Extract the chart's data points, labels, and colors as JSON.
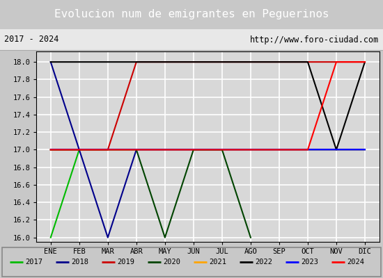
{
  "title": "Evolucion num de emigrantes en Peguerinos",
  "subtitle_left": "2017 - 2024",
  "subtitle_right": "http://www.foro-ciudad.com",
  "ylim": [
    15.95,
    18.12
  ],
  "yticks": [
    16.0,
    16.2,
    16.4,
    16.6,
    16.8,
    17.0,
    17.2,
    17.4,
    17.6,
    17.8,
    18.0
  ],
  "xtick_labels": [
    "ENE",
    "FEB",
    "MAR",
    "ABR",
    "MAY",
    "JUN",
    "JUL",
    "AGO",
    "SEP",
    "OCT",
    "NOV",
    "DIC"
  ],
  "plot_bg_color": "#d8d8d8",
  "title_bg_color": "#4472c4",
  "title_text_color": "#ffffff",
  "grid_color": "#ffffff",
  "series": [
    {
      "year": "2017",
      "color": "#00bb00",
      "x": [
        1,
        2
      ],
      "y": [
        16.0,
        17.0
      ]
    },
    {
      "year": "2018",
      "color": "#00008b",
      "x": [
        1,
        2,
        3,
        4,
        12
      ],
      "y": [
        18.0,
        17.0,
        16.0,
        17.0,
        17.0
      ]
    },
    {
      "year": "2019",
      "color": "#cc0000",
      "x": [
        1,
        3,
        4,
        12
      ],
      "y": [
        17.0,
        17.0,
        18.0,
        18.0
      ]
    },
    {
      "year": "2020",
      "color": "#004400",
      "x": [
        1,
        4,
        5,
        6,
        7,
        8
      ],
      "y": [
        17.0,
        17.0,
        16.0,
        17.0,
        17.0,
        16.0
      ]
    },
    {
      "year": "2021",
      "color": "#ffa500",
      "x": [
        1,
        12
      ],
      "y": [
        17.0,
        17.0
      ]
    },
    {
      "year": "2022",
      "color": "#000000",
      "x": [
        1,
        5,
        6,
        10,
        11,
        12
      ],
      "y": [
        18.0,
        18.0,
        18.0,
        18.0,
        17.0,
        18.0
      ]
    },
    {
      "year": "2023",
      "color": "#0000ff",
      "x": [
        1,
        12
      ],
      "y": [
        17.0,
        17.0
      ]
    },
    {
      "year": "2024",
      "color": "#ff0000",
      "x": [
        1,
        10,
        11,
        12
      ],
      "y": [
        17.0,
        17.0,
        18.0,
        18.0
      ]
    }
  ],
  "legend_colors": [
    "#00bb00",
    "#00008b",
    "#cc0000",
    "#004400",
    "#ffa500",
    "#000000",
    "#0000ff",
    "#ff0000"
  ],
  "legend_labels": [
    "2017",
    "2018",
    "2019",
    "2020",
    "2021",
    "2022",
    "2023",
    "2024"
  ]
}
